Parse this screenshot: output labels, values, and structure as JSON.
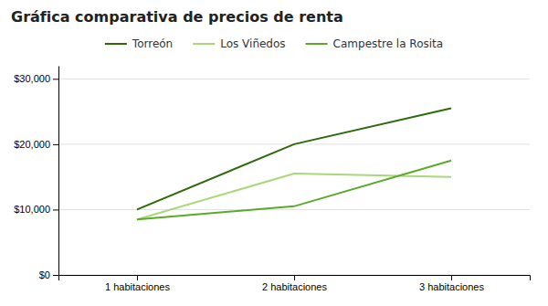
{
  "chart_data": {
    "type": "line",
    "title": "Gráfica comparativa de precios de renta",
    "categories": [
      "1 habitaciones",
      "2 habitaciones",
      "3 habitaciones"
    ],
    "series": [
      {
        "name": "Torreón",
        "color": "#2d6a0a",
        "values": [
          10000,
          20000,
          25500
        ]
      },
      {
        "name": "Los Viñedos",
        "color": "#a8d878",
        "values": [
          8500,
          15500,
          15000
        ]
      },
      {
        "name": "Campestre la Rosita",
        "color": "#5aaa2a",
        "values": [
          8500,
          10500,
          17500
        ]
      }
    ],
    "ylim": [
      0,
      32000
    ],
    "yticks": [
      {
        "value": 0,
        "label": "$0"
      },
      {
        "value": 10000,
        "label": "$10,000"
      },
      {
        "value": 20000,
        "label": "$20,000"
      },
      {
        "value": 30000,
        "label": "$30,000"
      }
    ],
    "grid": true,
    "legend": "top"
  }
}
